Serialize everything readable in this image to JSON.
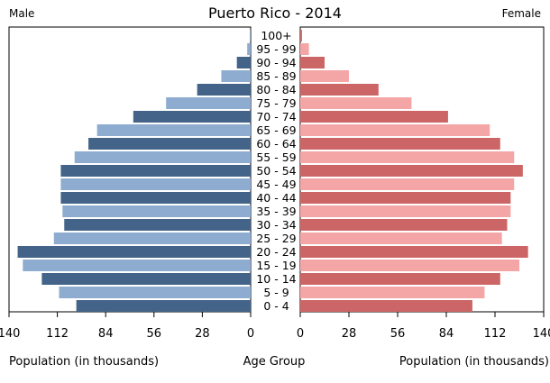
{
  "chart_data": {
    "type": "bar",
    "title": "Puerto Rico - 2014",
    "left_label": "Male",
    "right_label": "Female",
    "categories": [
      "100+",
      "95 - 99",
      "90 - 94",
      "85 - 89",
      "80 - 84",
      "75 - 79",
      "70 - 74",
      "65 - 69",
      "60 - 64",
      "55 - 59",
      "50 - 54",
      "45 - 49",
      "40 - 44",
      "35 - 39",
      "30 - 34",
      "25 - 29",
      "20 - 24",
      "15 - 19",
      "10 - 14",
      "5 - 9",
      "0 - 4"
    ],
    "series": [
      {
        "name": "Male",
        "values": [
          0.3,
          2,
          8,
          17,
          31,
          49,
          68,
          89,
          94,
          102,
          110,
          110,
          110,
          109,
          108,
          114,
          135,
          132,
          121,
          111,
          101
        ]
      },
      {
        "name": "Female",
        "values": [
          1,
          5,
          14,
          28,
          45,
          64,
          85,
          109,
          115,
          123,
          128,
          123,
          121,
          121,
          119,
          116,
          131,
          126,
          115,
          106,
          99
        ]
      }
    ],
    "xlim": [
      0,
      140
    ],
    "xticks": [
      140,
      112,
      84,
      56,
      28,
      0
    ],
    "xticks_right": [
      0,
      28,
      56,
      84,
      112,
      140
    ],
    "xlabel_left": "Population (in thousands)",
    "xlabel_center": "Age Group",
    "xlabel_right": "Population (in thousands)",
    "colors": {
      "male_dark": "#436488",
      "male_light": "#8eacd0",
      "female_dark": "#cc6666",
      "female_light": "#f4a6a6"
    }
  }
}
